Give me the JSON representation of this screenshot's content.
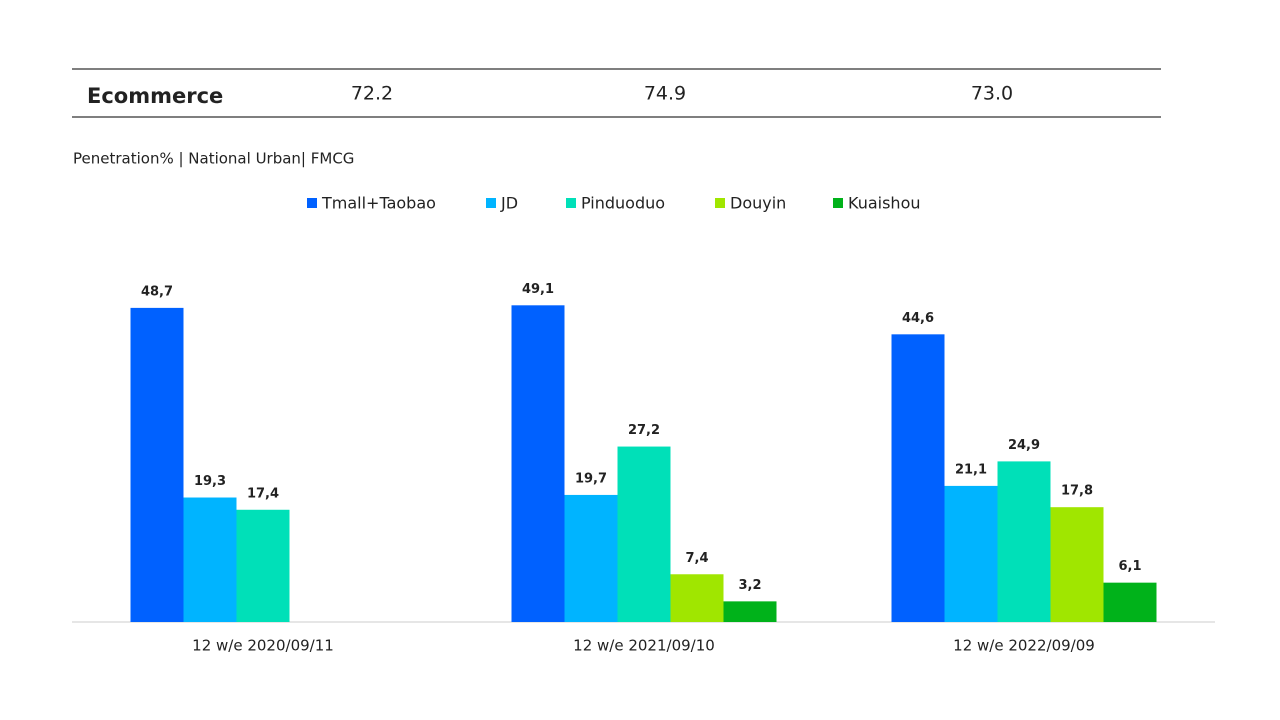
{
  "table": {
    "rows": [
      [
        "Ecommerce",
        "72.2",
        "74.9",
        "73.0"
      ]
    ]
  },
  "chart_data": {
    "type": "bar",
    "subtitle": "Penetration% | National Urban| FMCG",
    "categories": [
      "12 w/e 2020/09/11",
      "12 w/e 2021/09/10",
      "12 w/e 2022/09/09"
    ],
    "series": [
      {
        "name": "Tmall+Taobao",
        "color": "#0061ff",
        "values": [
          48.7,
          49.1,
          44.6
        ],
        "value_labels": [
          "48,7",
          "49,1",
          "44,6"
        ]
      },
      {
        "name": "JD",
        "color": "#00b4ff",
        "values": [
          19.3,
          19.7,
          21.1
        ],
        "value_labels": [
          "19,3",
          "19,7",
          "21,1"
        ]
      },
      {
        "name": "Pinduoduo",
        "color": "#00e0b8",
        "values": [
          17.4,
          27.2,
          24.9
        ],
        "value_labels": [
          "17,4",
          "27,2",
          "24,9"
        ]
      },
      {
        "name": "Douyin",
        "color": "#a0e600",
        "values": [
          null,
          7.4,
          17.8
        ],
        "value_labels": [
          null,
          "7,4",
          "17,8"
        ]
      },
      {
        "name": "Kuaishou",
        "color": "#00b21a",
        "values": [
          null,
          3.2,
          6.1
        ],
        "value_labels": [
          null,
          "3,2",
          "6,1"
        ]
      }
    ],
    "legend": "top"
  }
}
